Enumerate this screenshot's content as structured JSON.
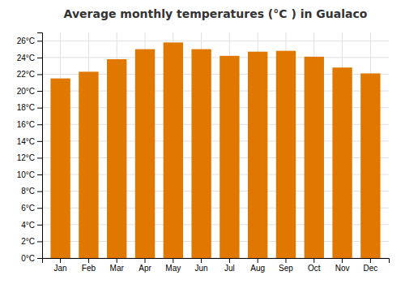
{
  "chart_data": {
    "type": "bar",
    "title": "Average monthly temperatures (°C ) in Gualaco",
    "categories": [
      "Jan",
      "Feb",
      "Mar",
      "Apr",
      "May",
      "Jun",
      "Jul",
      "Aug",
      "Sep",
      "Oct",
      "Nov",
      "Dec"
    ],
    "values": [
      21.5,
      22.3,
      23.8,
      25.0,
      25.8,
      25.0,
      24.2,
      24.7,
      24.8,
      24.1,
      22.8,
      22.1
    ],
    "color": "#E07800",
    "ylim": [
      0,
      27
    ],
    "yticks": [
      {
        "value": 0,
        "label": "0°C"
      },
      {
        "value": 2,
        "label": "2°C"
      },
      {
        "value": 4,
        "label": "4°C"
      },
      {
        "value": 6,
        "label": "6°C"
      },
      {
        "value": 8,
        "label": "8°C"
      },
      {
        "value": 10,
        "label": "10°C"
      },
      {
        "value": 12,
        "label": "12°C"
      },
      {
        "value": 14,
        "label": "14°C"
      },
      {
        "value": 16,
        "label": "16°C"
      },
      {
        "value": 18,
        "label": "18°C"
      },
      {
        "value": 20,
        "label": "20°C"
      },
      {
        "value": 22,
        "label": "22°C"
      },
      {
        "value": 24,
        "label": "24°C"
      },
      {
        "value": 26,
        "label": "26°C"
      }
    ],
    "grid": true
  }
}
